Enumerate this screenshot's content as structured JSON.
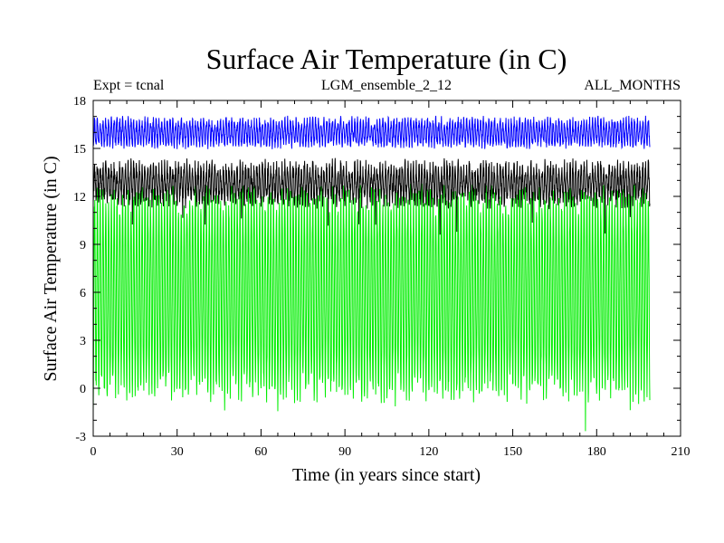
{
  "chart_data": {
    "type": "line",
    "title": "Surface Air Temperature (in C)",
    "subtitle_left": "Expt = tcnal",
    "subtitle_center": "LGM_ensemble_2_12",
    "subtitle_right": "ALL_MONTHS",
    "xlabel": "Time (in years since start)",
    "ylabel": "Surface Air Temperature (in C)",
    "xlim": [
      0,
      210
    ],
    "ylim": [
      -3,
      18
    ],
    "x_ticks": [
      0,
      30,
      60,
      90,
      120,
      150,
      180,
      210
    ],
    "y_ticks": [
      -3,
      0,
      3,
      6,
      9,
      12,
      15,
      18
    ],
    "x_range_data": [
      0,
      199
    ],
    "series": [
      {
        "name": "green",
        "color": "#00ee00",
        "seasonal_min": 0.0,
        "seasonal_max": 11.8,
        "noise": 1.0,
        "spike_years": [
          0,
          47,
          66,
          108,
          176,
          192
        ],
        "note": "monthly values oscillating seasonally between ~-1 and ~12.5 C"
      },
      {
        "name": "black",
        "color": "#000000",
        "seasonal_min": 11.8,
        "seasonal_max": 13.8,
        "noise": 0.6,
        "dip_years": [
          14,
          32,
          40,
          53,
          84,
          95,
          101,
          124,
          130,
          157,
          183,
          192
        ],
        "note": "monthly values between ~11.5 and ~14.5 C with periodic dips"
      },
      {
        "name": "blue",
        "color": "#0000ff",
        "seasonal_min": 15.3,
        "seasonal_max": 16.7,
        "noise": 0.35,
        "note": "monthly values between ~15 and ~17 C"
      }
    ]
  }
}
